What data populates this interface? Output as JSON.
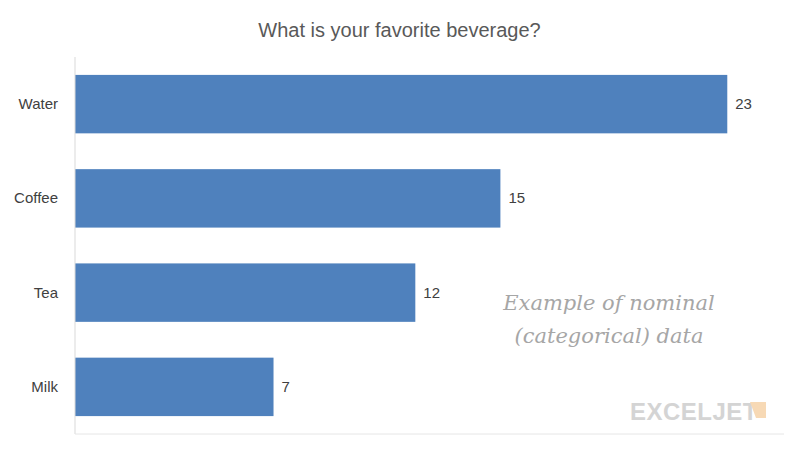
{
  "chart_data": {
    "type": "bar",
    "orientation": "horizontal",
    "title": "What is your favorite beverage?",
    "categories": [
      "Water",
      "Coffee",
      "Tea",
      "Milk"
    ],
    "values": [
      23,
      15,
      12,
      7
    ],
    "color": "#4f81bd",
    "xlim": [
      0,
      25
    ],
    "grid": false,
    "data_labels": true,
    "tick_labels": "y",
    "annotations": [
      "Example of nominal",
      "(categorical) data",
      "EXCELJET"
    ]
  }
}
